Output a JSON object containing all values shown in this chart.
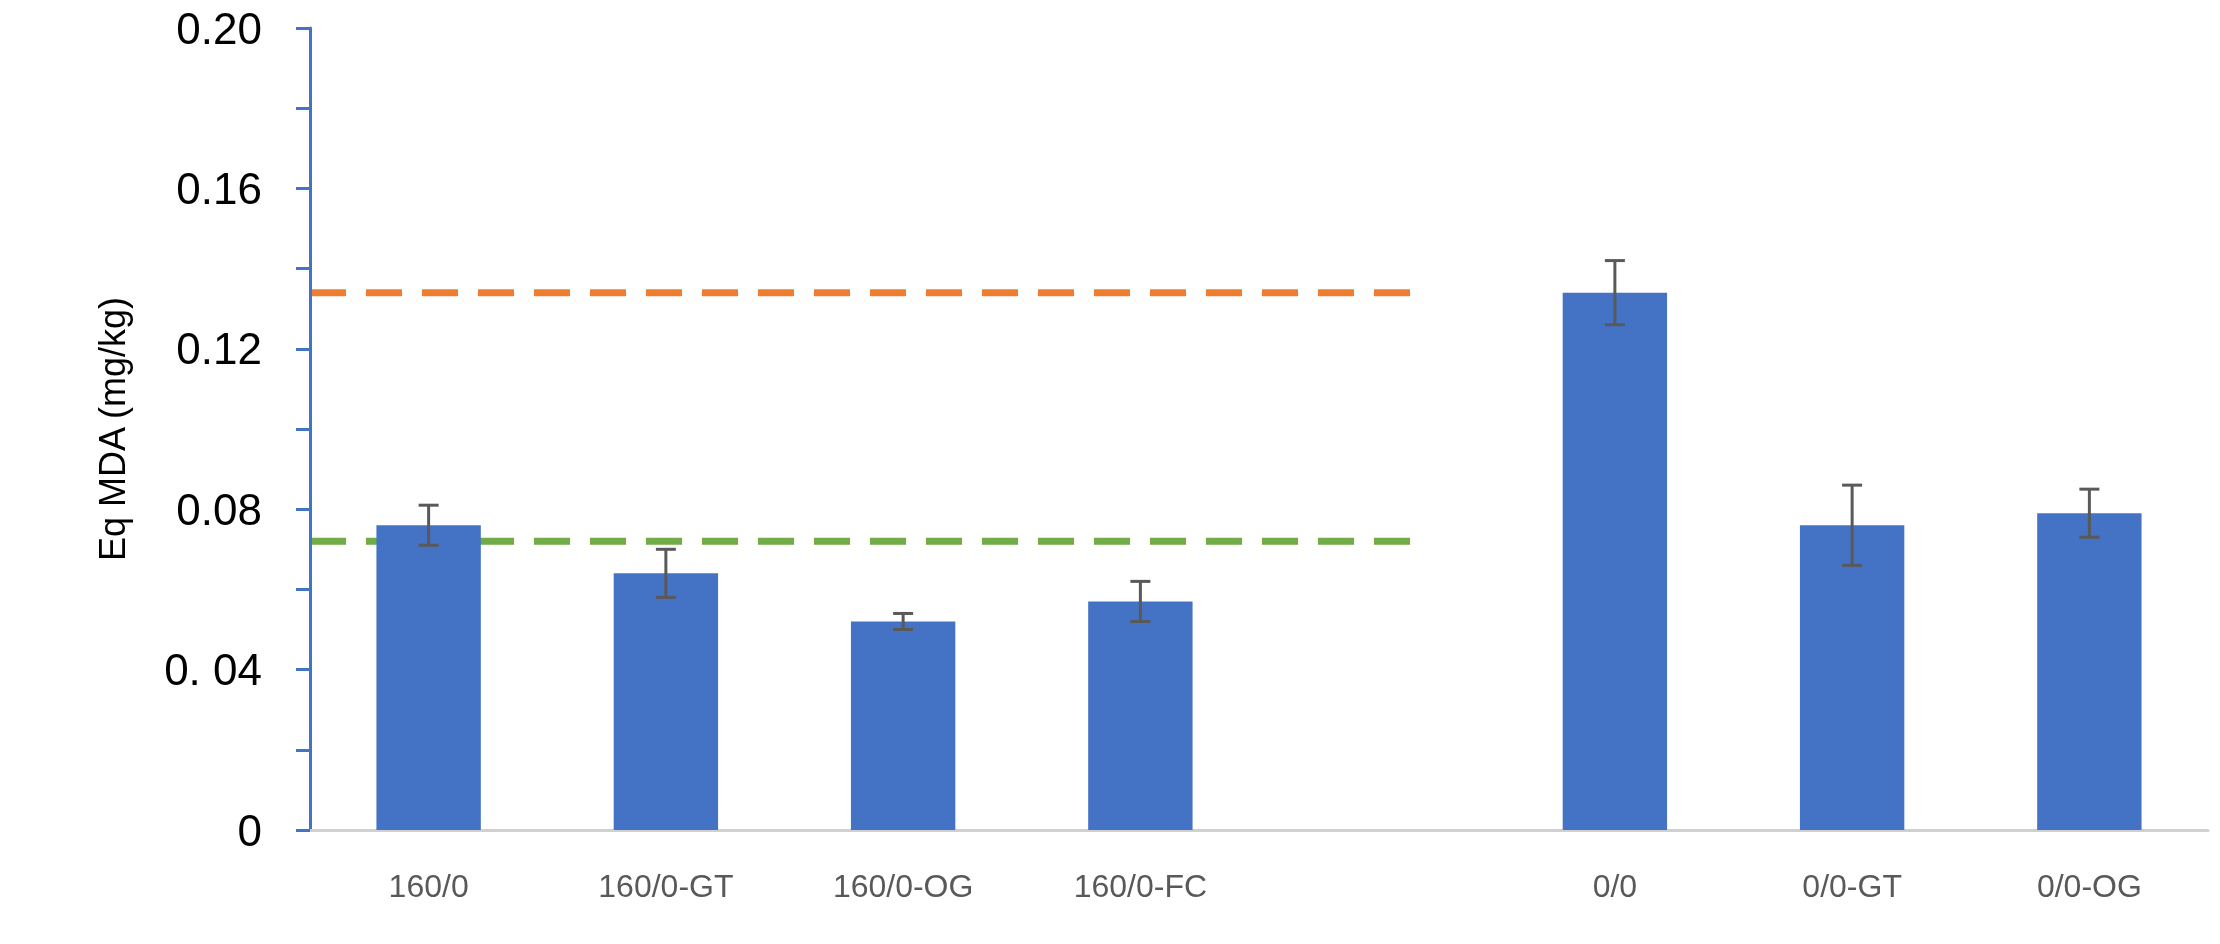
{
  "chart_data": {
    "type": "bar",
    "ylabel": "Eq MDA (mg/kg)",
    "categories": [
      "160/0",
      "160/0-GT",
      "160/0-OG",
      "160/0-FC",
      null,
      "0/0",
      "0/0-GT",
      "0/0-OG"
    ],
    "values": [
      0.076,
      0.064,
      0.052,
      0.057,
      null,
      0.134,
      0.076,
      0.079
    ],
    "errors": [
      0.005,
      0.006,
      0.002,
      0.005,
      null,
      0.008,
      0.01,
      0.006
    ],
    "color": "#4472c4",
    "ylim": [
      0,
      0.2
    ],
    "yticks": [
      0,
      {
        "value": 0.02,
        "label": null
      },
      {
        "value": 0.04,
        "label": "0. 04"
      },
      {
        "value": 0.06,
        "label": null
      },
      {
        "value": 0.08,
        "label": "0.08"
      },
      {
        "value": 0.1,
        "label": null
      },
      {
        "value": 0.12,
        "label": "0.12"
      },
      {
        "value": 0.14,
        "label": null
      },
      {
        "value": 0.16,
        "label": "0.16"
      },
      {
        "value": 0.18,
        "label": null
      },
      {
        "value": 0.2,
        "label": "0.20"
      }
    ],
    "ref_lines": [
      {
        "axis": "y",
        "value": 0.134,
        "color": "#ed7d31",
        "line_style": "dashed"
      },
      {
        "axis": "y",
        "value": 0.072,
        "color": "#70ad47",
        "line_style": "dashed"
      }
    ],
    "grid": false
  }
}
